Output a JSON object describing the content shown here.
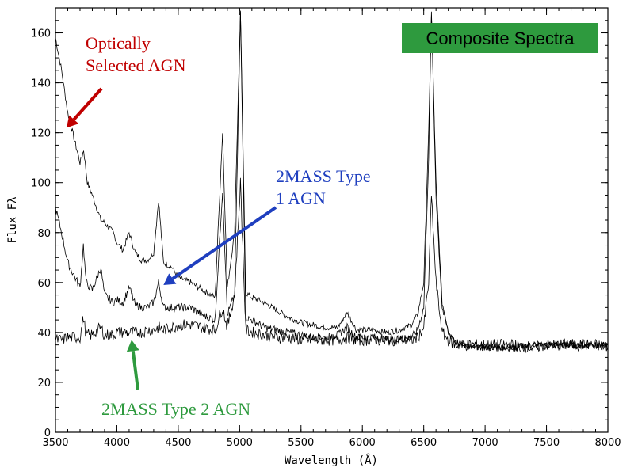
{
  "chart_data": {
    "type": "line",
    "title": "Composite Spectra",
    "xlabel": "Wavelength (Å)",
    "ylabel": "Flux Fλ",
    "xlim": [
      3500,
      8000
    ],
    "ylim": [
      0,
      170
    ],
    "xticks": [
      3500,
      4000,
      4500,
      5000,
      5500,
      6000,
      6500,
      7000,
      7500,
      8000
    ],
    "yticks": [
      0,
      20,
      40,
      60,
      80,
      100,
      120,
      140,
      160
    ],
    "grid": false,
    "colors": {
      "optical": "#c00000",
      "type1": "#1f3fbf",
      "type2": "#2e9a3e",
      "badge": "#2e9a3e",
      "line": "#000000"
    },
    "series": [
      {
        "name": "Optically Selected AGN",
        "x": [
          3500,
          3550,
          3600,
          3650,
          3700,
          3730,
          3760,
          3800,
          3870,
          3900,
          3970,
          4000,
          4050,
          4100,
          4150,
          4200,
          4250,
          4300,
          4340,
          4380,
          4450,
          4500,
          4600,
          4700,
          4800,
          4861,
          4900,
          4959,
          5007,
          5050,
          5100,
          5200,
          5300,
          5400,
          5500,
          5600,
          5700,
          5800,
          5876,
          5950,
          6100,
          6200,
          6300,
          6400,
          6450,
          6500,
          6540,
          6563,
          6600,
          6650,
          6700,
          6750,
          6800,
          6900,
          7000,
          7200,
          7400,
          7500,
          7600,
          7700,
          7800,
          7900,
          8000
        ],
        "y": [
          158,
          145,
          128,
          118,
          108,
          113,
          100,
          95,
          85,
          84,
          80,
          76,
          73,
          80,
          72,
          69,
          69,
          72,
          93,
          68,
          66,
          62,
          60,
          57,
          54,
          120,
          58,
          80,
          168,
          56,
          54,
          52,
          49,
          46,
          44,
          43,
          42,
          42,
          48,
          41,
          41,
          40,
          41,
          43,
          47,
          60,
          120,
          168,
          100,
          52,
          41,
          37,
          35,
          34,
          34,
          34,
          35,
          35,
          35,
          35,
          35,
          35,
          35
        ]
      },
      {
        "name": "2MASS Type 1 AGN",
        "x": [
          3500,
          3550,
          3600,
          3650,
          3700,
          3727,
          3750,
          3800,
          3869,
          3900,
          3970,
          4000,
          4050,
          4101,
          4150,
          4200,
          4250,
          4300,
          4340,
          4380,
          4450,
          4500,
          4600,
          4700,
          4800,
          4861,
          4900,
          4959,
          5007,
          5050,
          5100,
          5200,
          5300,
          5400,
          5500,
          5600,
          5700,
          5800,
          5876,
          5950,
          6100,
          6200,
          6300,
          6400,
          6450,
          6500,
          6540,
          6563,
          6600,
          6650,
          6700,
          6750,
          6800,
          6900,
          7000,
          7200,
          7400,
          7500,
          7600,
          7700,
          7800,
          7900,
          8000
        ],
        "y": [
          90,
          80,
          68,
          63,
          58,
          75,
          60,
          57,
          66,
          55,
          52,
          53,
          52,
          58,
          51,
          50,
          50,
          52,
          60,
          50,
          50,
          50,
          50,
          47,
          45,
          97,
          47,
          55,
          168,
          46,
          45,
          42,
          41,
          40,
          39,
          38,
          38,
          39,
          42,
          38,
          38,
          37,
          37,
          38,
          41,
          50,
          110,
          168,
          95,
          50,
          40,
          37,
          35,
          35,
          34,
          34,
          34,
          35,
          35,
          35,
          35,
          35,
          34
        ]
      },
      {
        "name": "2MASS Type 2 AGN",
        "x": [
          3500,
          3550,
          3600,
          3650,
          3700,
          3727,
          3750,
          3800,
          3869,
          3900,
          3970,
          4000,
          4050,
          4101,
          4150,
          4200,
          4250,
          4300,
          4340,
          4380,
          4450,
          4500,
          4600,
          4700,
          4800,
          4861,
          4900,
          4959,
          5007,
          5050,
          5100,
          5200,
          5300,
          5400,
          5500,
          5600,
          5700,
          5800,
          5876,
          5950,
          6100,
          6200,
          6300,
          6400,
          6450,
          6500,
          6540,
          6563,
          6600,
          6650,
          6700,
          6750,
          6800,
          6900,
          7000,
          7200,
          7400,
          7500,
          7600,
          7700,
          7800,
          7900,
          8000
        ],
        "y": [
          37,
          37,
          38,
          38,
          38,
          46,
          39,
          39,
          42,
          39,
          39,
          40,
          40,
          40,
          40,
          40,
          41,
          41,
          42,
          41,
          42,
          43,
          43,
          42,
          41,
          50,
          42,
          55,
          100,
          41,
          40,
          39,
          38,
          38,
          37,
          37,
          37,
          37,
          38,
          37,
          37,
          37,
          37,
          37,
          38,
          42,
          60,
          95,
          60,
          40,
          37,
          35,
          35,
          35,
          35,
          35,
          34,
          35,
          35,
          35,
          35,
          35,
          34
        ]
      }
    ],
    "annotations": [
      {
        "lines": [
          "Optically",
          "Selected AGN"
        ],
        "series": "Optically Selected AGN",
        "point_x": 3590,
        "point_y": 122
      },
      {
        "lines": [
          "2MASS Type",
          "1 AGN"
        ],
        "series": "2MASS Type 1 AGN",
        "point_x": 4380,
        "point_y": 59
      },
      {
        "lines": [
          "2MASS Type 2 AGN"
        ],
        "series": "2MASS Type 2 AGN",
        "point_x": 4120,
        "point_y": 37
      }
    ]
  }
}
